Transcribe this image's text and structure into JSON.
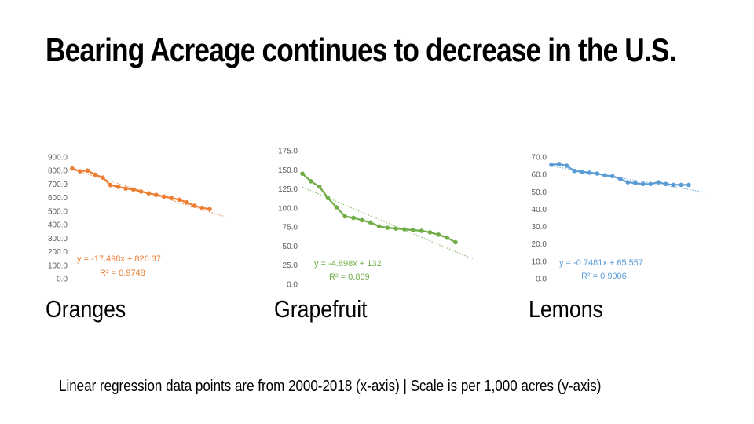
{
  "title": "Bearing Acreage continues to decrease in the U.S.",
  "footnote": "Linear regression data points are from 2000-2018 (x-axis) | Scale is per 1,000 acres (y-axis)",
  "chart_data": [
    {
      "type": "line",
      "label": "Oranges",
      "color": "#ED7D31",
      "x": [
        2000,
        2001,
        2002,
        2003,
        2004,
        2005,
        2006,
        2007,
        2008,
        2009,
        2010,
        2011,
        2012,
        2013,
        2014,
        2015,
        2016,
        2017,
        2018
      ],
      "series": [
        {
          "values": [
            815,
            795,
            800,
            770,
            748,
            693,
            680,
            667,
            660,
            645,
            632,
            620,
            608,
            597,
            585,
            565,
            540,
            525,
            515
          ]
        }
      ],
      "trendline": {
        "slope": -17.498,
        "intercept": 826.37,
        "style": "dotted",
        "extends_points": 2
      },
      "equation": "y = -17.498x + 826.37",
      "r_squared": "R² = 0.9748",
      "ylim": [
        0,
        900
      ],
      "yticks": [
        "900.0",
        "800.0",
        "700.0",
        "600.0",
        "500.0",
        "400.0",
        "300.0",
        "200.0",
        "100.0",
        "0.0"
      ]
    },
    {
      "type": "line",
      "label": "Grapefruit",
      "color": "#70AD47",
      "x": [
        2000,
        2001,
        2002,
        2003,
        2004,
        2005,
        2006,
        2007,
        2008,
        2009,
        2010,
        2011,
        2012,
        2013,
        2014,
        2015,
        2016,
        2017,
        2018
      ],
      "series": [
        {
          "values": [
            145,
            135,
            128,
            113,
            101,
            89,
            87,
            84,
            81,
            76,
            74,
            73,
            72,
            71,
            70,
            68,
            65,
            61,
            55
          ]
        }
      ],
      "trendline": {
        "slope": -4.698,
        "intercept": 132,
        "style": "dotted",
        "extends_points": 2
      },
      "equation": "y = -4.698x + 132",
      "r_squared": "R² = 0.869",
      "ylim": [
        0,
        175
      ],
      "yticks": [
        "175.0",
        "150.0",
        "125.0",
        "100.0",
        "75.0",
        "50.0",
        "25.0",
        "0.0"
      ]
    },
    {
      "type": "line",
      "label": "Lemons",
      "color": "#5B9BD5",
      "x": [
        2000,
        2001,
        2002,
        2003,
        2004,
        2005,
        2006,
        2007,
        2008,
        2009,
        2010,
        2011,
        2012,
        2013,
        2014,
        2015,
        2016,
        2017,
        2018
      ],
      "series": [
        {
          "values": [
            65.5,
            66,
            65,
            62,
            61.5,
            61,
            60.5,
            59.5,
            59,
            57.5,
            55.5,
            55,
            54.5,
            54.5,
            55.5,
            54.5,
            54,
            54,
            54
          ]
        }
      ],
      "trendline": {
        "slope": -0.7481,
        "intercept": 65.557,
        "style": "dotted",
        "extends_points": 2
      },
      "equation": "y = -0.7481x + 65.557",
      "r_squared": "R² = 0.9006",
      "ylim": [
        0,
        70
      ],
      "yticks": [
        "70.0",
        "60.0",
        "50.0",
        "40.0",
        "30.0",
        "20.0",
        "10.0",
        "0.0"
      ]
    }
  ]
}
